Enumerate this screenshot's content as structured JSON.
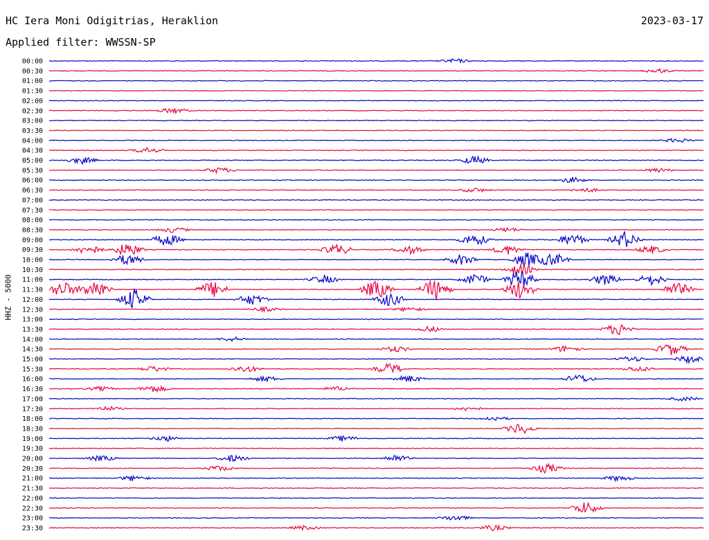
{
  "header": {
    "title": "HC Iera Moni Odigitrias, Heraklion",
    "date": "2023-03-17",
    "filter": "Applied filter: WWSSN-SP"
  },
  "chart_data": {
    "type": "line",
    "ylabel": "HHZ - 5000",
    "colors": {
      "even": "#0000c8",
      "odd": "#e8003c"
    },
    "rows": [
      {
        "time": "00:00",
        "events": [
          {
            "x": 0.62,
            "a": 3
          }
        ]
      },
      {
        "time": "00:30",
        "events": [
          {
            "x": 0.93,
            "a": 3
          }
        ]
      },
      {
        "time": "01:00",
        "events": []
      },
      {
        "time": "01:30",
        "events": []
      },
      {
        "time": "02:00",
        "events": []
      },
      {
        "time": "02:30",
        "events": [
          {
            "x": 0.19,
            "a": 4
          }
        ]
      },
      {
        "time": "03:00",
        "events": []
      },
      {
        "time": "03:30",
        "events": []
      },
      {
        "time": "04:00",
        "events": [
          {
            "x": 0.96,
            "a": 3
          }
        ]
      },
      {
        "time": "04:30",
        "events": [
          {
            "x": 0.15,
            "a": 4
          }
        ]
      },
      {
        "time": "05:00",
        "events": [
          {
            "x": 0.05,
            "a": 5
          },
          {
            "x": 0.65,
            "a": 6
          }
        ]
      },
      {
        "time": "05:30",
        "events": [
          {
            "x": 0.26,
            "a": 4
          },
          {
            "x": 0.93,
            "a": 3
          }
        ]
      },
      {
        "time": "06:00",
        "events": [
          {
            "x": 0.8,
            "a": 4
          }
        ]
      },
      {
        "time": "06:30",
        "events": [
          {
            "x": 0.65,
            "a": 3
          },
          {
            "x": 0.82,
            "a": 3
          }
        ]
      },
      {
        "time": "07:00",
        "events": []
      },
      {
        "time": "07:30",
        "events": []
      },
      {
        "time": "08:00",
        "events": []
      },
      {
        "time": "08:30",
        "events": [
          {
            "x": 0.19,
            "a": 4
          },
          {
            "x": 0.7,
            "a": 3
          }
        ]
      },
      {
        "time": "09:00",
        "events": [
          {
            "x": 0.18,
            "a": 9
          },
          {
            "x": 0.65,
            "a": 9
          },
          {
            "x": 0.8,
            "a": 9
          },
          {
            "x": 0.88,
            "a": 12
          }
        ]
      },
      {
        "time": "09:30",
        "events": [
          {
            "x": 0.06,
            "a": 7
          },
          {
            "x": 0.12,
            "a": 10
          },
          {
            "x": 0.44,
            "a": 8
          },
          {
            "x": 0.55,
            "a": 6
          },
          {
            "x": 0.7,
            "a": 7
          },
          {
            "x": 0.92,
            "a": 6
          }
        ]
      },
      {
        "time": "10:00",
        "events": [
          {
            "x": 0.12,
            "a": 8
          },
          {
            "x": 0.63,
            "a": 8
          },
          {
            "x": 0.73,
            "a": 11
          },
          {
            "x": 0.77,
            "a": 10
          }
        ]
      },
      {
        "time": "10:30",
        "events": [
          {
            "x": 0.72,
            "a": 8
          }
        ]
      },
      {
        "time": "11:00",
        "events": [
          {
            "x": 0.42,
            "a": 6
          },
          {
            "x": 0.65,
            "a": 8
          },
          {
            "x": 0.72,
            "a": 14
          },
          {
            "x": 0.85,
            "a": 8
          },
          {
            "x": 0.92,
            "a": 8
          }
        ]
      },
      {
        "time": "11:30",
        "events": [
          {
            "x": 0.02,
            "a": 12
          },
          {
            "x": 0.07,
            "a": 14
          },
          {
            "x": 0.25,
            "a": 12
          },
          {
            "x": 0.5,
            "a": 14
          },
          {
            "x": 0.59,
            "a": 16
          },
          {
            "x": 0.72,
            "a": 14
          },
          {
            "x": 0.96,
            "a": 10
          }
        ]
      },
      {
        "time": "12:00",
        "events": [
          {
            "x": 0.13,
            "a": 15
          },
          {
            "x": 0.31,
            "a": 8
          },
          {
            "x": 0.52,
            "a": 10
          }
        ]
      },
      {
        "time": "12:30",
        "events": [
          {
            "x": 0.33,
            "a": 3
          },
          {
            "x": 0.55,
            "a": 3
          }
        ]
      },
      {
        "time": "13:00",
        "events": []
      },
      {
        "time": "13:30",
        "events": [
          {
            "x": 0.58,
            "a": 4
          },
          {
            "x": 0.87,
            "a": 9
          }
        ]
      },
      {
        "time": "14:00",
        "events": [
          {
            "x": 0.28,
            "a": 3
          }
        ]
      },
      {
        "time": "14:30",
        "events": [
          {
            "x": 0.53,
            "a": 4
          },
          {
            "x": 0.79,
            "a": 5
          },
          {
            "x": 0.95,
            "a": 9
          }
        ]
      },
      {
        "time": "15:00",
        "events": [
          {
            "x": 0.89,
            "a": 4
          },
          {
            "x": 0.98,
            "a": 6
          }
        ]
      },
      {
        "time": "15:30",
        "events": [
          {
            "x": 0.16,
            "a": 4
          },
          {
            "x": 0.3,
            "a": 5
          },
          {
            "x": 0.52,
            "a": 8
          },
          {
            "x": 0.9,
            "a": 4
          }
        ]
      },
      {
        "time": "16:00",
        "events": [
          {
            "x": 0.33,
            "a": 4
          },
          {
            "x": 0.55,
            "a": 5
          },
          {
            "x": 0.81,
            "a": 6
          }
        ]
      },
      {
        "time": "16:30",
        "events": [
          {
            "x": 0.08,
            "a": 3
          },
          {
            "x": 0.16,
            "a": 5
          },
          {
            "x": 0.44,
            "a": 3
          }
        ]
      },
      {
        "time": "17:00",
        "events": [
          {
            "x": 0.97,
            "a": 3
          }
        ]
      },
      {
        "time": "17:30",
        "events": [
          {
            "x": 0.09,
            "a": 3
          },
          {
            "x": 0.64,
            "a": 3
          }
        ]
      },
      {
        "time": "18:00",
        "events": [
          {
            "x": 0.68,
            "a": 3
          }
        ]
      },
      {
        "time": "18:30",
        "events": [
          {
            "x": 0.72,
            "a": 8
          }
        ]
      },
      {
        "time": "19:00",
        "events": [
          {
            "x": 0.18,
            "a": 4
          },
          {
            "x": 0.45,
            "a": 4
          }
        ]
      },
      {
        "time": "19:30",
        "events": []
      },
      {
        "time": "20:00",
        "events": [
          {
            "x": 0.08,
            "a": 4
          },
          {
            "x": 0.28,
            "a": 5
          },
          {
            "x": 0.53,
            "a": 5
          }
        ]
      },
      {
        "time": "20:30",
        "events": [
          {
            "x": 0.26,
            "a": 4
          },
          {
            "x": 0.76,
            "a": 7
          }
        ]
      },
      {
        "time": "21:00",
        "events": [
          {
            "x": 0.13,
            "a": 4
          },
          {
            "x": 0.87,
            "a": 4
          }
        ]
      },
      {
        "time": "21:30",
        "events": []
      },
      {
        "time": "22:00",
        "events": []
      },
      {
        "time": "22:30",
        "events": [
          {
            "x": 0.82,
            "a": 9
          }
        ]
      },
      {
        "time": "23:00",
        "events": [
          {
            "x": 0.62,
            "a": 4
          }
        ]
      },
      {
        "time": "23:30",
        "events": [
          {
            "x": 0.39,
            "a": 3
          },
          {
            "x": 0.68,
            "a": 4
          }
        ]
      }
    ]
  }
}
